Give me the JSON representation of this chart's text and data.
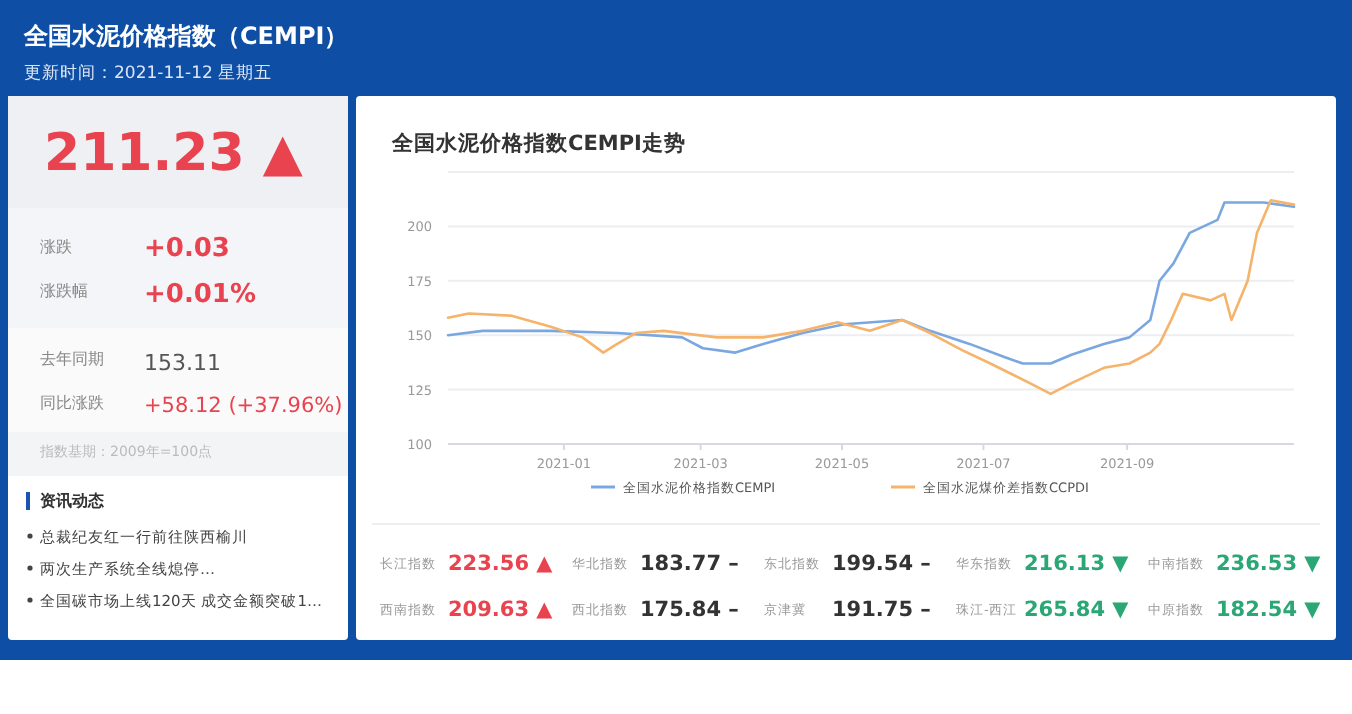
{
  "chart_data": [
    {
      "type": "other",
      "title": "全国水泥价格指数（CEMPI）",
      "subtitle": "更新时间：2021-11-12 星期五",
      "annotations": [
        "211.23 ▲",
        "涨跌",
        "+0.03",
        "涨跌幅",
        "+0.01%",
        "去年同期",
        "153.11",
        "同比涨跌",
        "+58.12 (+37.96%)",
        "指数基期：2009年=100点",
        "资讯动态",
        "总裁纪友红一行前往陕西榆川",
        "两次生产系统全线熄停…",
        "全国碳市场上线120天 成交金额突破1…"
      ]
    },
    {
      "type": "line",
      "title": "全国水泥价格指数CEMPI走势",
      "xlim": [
        "2020-11-12",
        "2021-11-12"
      ],
      "xticks": [
        {
          "value": "2021-01",
          "label": "2021-01"
        },
        {
          "value": "2021-03",
          "label": "2021-03"
        },
        {
          "value": "2021-05",
          "label": "2021-05"
        },
        {
          "value": "2021-07",
          "label": "2021-07"
        },
        {
          "value": "2021-09",
          "label": "2021-09"
        }
      ],
      "ylim": [
        100,
        225
      ],
      "yticks": [
        100,
        125,
        150,
        175,
        200,
        {
          "value": 225,
          "label": null
        }
      ],
      "grid": "y",
      "legend": "bottom",
      "series": [
        {
          "name": "全国水泥价格指数CEMPI",
          "color": "#7ba7e0",
          "x": [
            "2020-11-12",
            "2020-11-27",
            "2020-12-26",
            "2021-01-24",
            "2021-02-21",
            "2021-03-02",
            "2021-03-16",
            "2021-03-28",
            "2021-04-14",
            "2021-05-02",
            "2021-05-27",
            "2021-06-08",
            "2021-06-25",
            "2021-07-10",
            "2021-07-18",
            "2021-07-30",
            "2021-08-08",
            "2021-08-22",
            "2021-09-02",
            "2021-09-11",
            "2021-09-15",
            "2021-09-21",
            "2021-09-28",
            "2021-10-10",
            "2021-10-13",
            "2021-10-30",
            "2021-11-12"
          ],
          "values": [
            150,
            152,
            152,
            151,
            149,
            144,
            142,
            146,
            151,
            155,
            157,
            152,
            146,
            140,
            137,
            137,
            141,
            146,
            149,
            157,
            175,
            183,
            197,
            203,
            211,
            211,
            209
          ]
        },
        {
          "name": "全国水泥煤价差指数CCPDI",
          "color": "#f5b36b",
          "x": [
            "2020-11-12",
            "2020-11-21",
            "2020-12-09",
            "2020-12-26",
            "2021-01-09",
            "2021-01-18",
            "2021-01-24",
            "2021-02-01",
            "2021-02-13",
            "2021-03-08",
            "2021-03-28",
            "2021-04-14",
            "2021-04-29",
            "2021-05-13",
            "2021-05-27",
            "2021-06-08",
            "2021-06-22",
            "2021-07-04",
            "2021-07-21",
            "2021-07-30",
            "2021-08-08",
            "2021-08-22",
            "2021-09-02",
            "2021-09-11",
            "2021-09-15",
            "2021-09-20",
            "2021-09-25",
            "2021-10-07",
            "2021-10-13",
            "2021-10-16",
            "2021-10-23",
            "2021-10-27",
            "2021-11-02",
            "2021-11-12"
          ],
          "values": [
            158,
            160,
            159,
            154,
            149,
            142,
            146,
            151,
            152,
            149,
            149,
            152,
            156,
            152,
            157,
            151,
            143,
            137,
            128,
            123,
            128,
            135,
            137,
            142,
            146,
            157,
            169,
            166,
            169,
            157,
            175,
            197,
            212,
            210
          ]
        }
      ]
    },
    {
      "type": "other",
      "categories": [
        "长江指数",
        "华北指数",
        "东北指数",
        "华东指数",
        "中南指数",
        "西南指数",
        "西北指数",
        "京津冀",
        "珠江-西江",
        "中原指数"
      ],
      "value_labels": [
        "223.56 ▲",
        "183.77 –",
        "199.54 –",
        "216.13 ▼",
        "236.53 ▼",
        "209.63 ▲",
        "175.84 –",
        "191.75 –",
        "265.84 ▼",
        "182.54 ▼"
      ],
      "colors": [
        "#e8434f",
        "#333333",
        "#333333",
        "#2aa775",
        "#2aa775",
        "#e8434f",
        "#333333",
        "#333333",
        "#2aa775",
        "#2aa775"
      ]
    }
  ]
}
